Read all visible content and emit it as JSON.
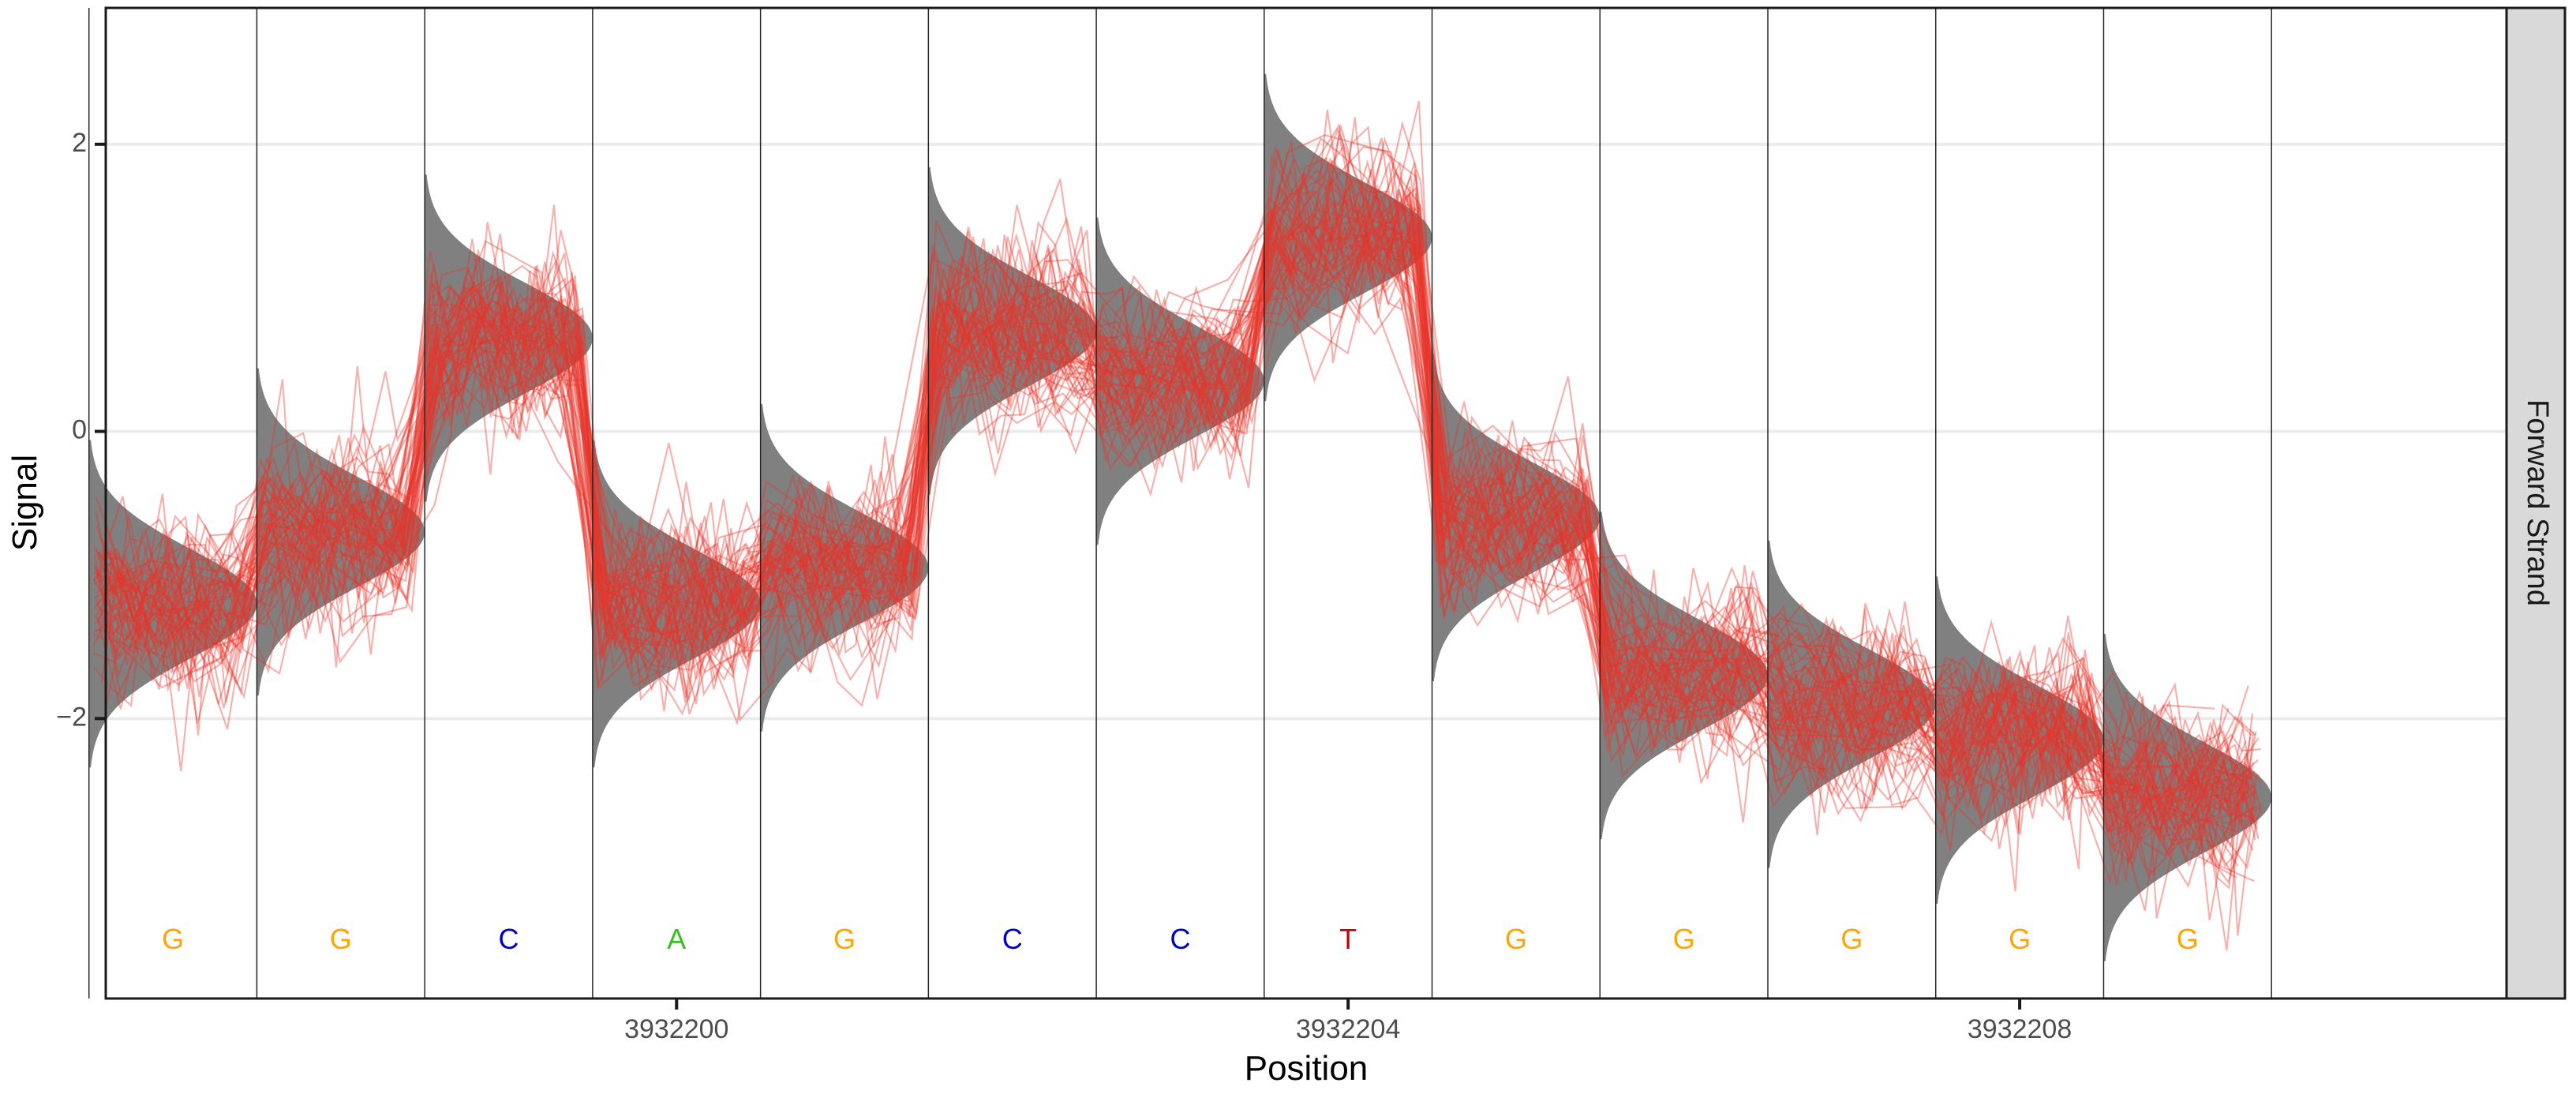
{
  "chart_data": {
    "type": "line",
    "title": "",
    "xlabel": "Position",
    "ylabel": "Signal",
    "facet_label": "Forward Strand",
    "x_ticks": [
      3932200,
      3932204,
      3932208
    ],
    "x_tick_labels": [
      "3932200",
      "3932204",
      "3932208"
    ],
    "y_ticks": [
      -2,
      0,
      2
    ],
    "y_tick_labels": [
      "−2",
      "0",
      "2"
    ],
    "xlim": [
      3932196.6,
      3932210.9
    ],
    "ylim": [
      -3.95,
      2.95
    ],
    "grid": "horizontal-major",
    "bases": [
      {
        "position": 3932197,
        "base": "G",
        "mean": -1.2
      },
      {
        "position": 3932198,
        "base": "G",
        "mean": -0.7
      },
      {
        "position": 3932199,
        "base": "C",
        "mean": 0.65
      },
      {
        "position": 3932200,
        "base": "A",
        "mean": -1.2
      },
      {
        "position": 3932201,
        "base": "G",
        "mean": -0.95
      },
      {
        "position": 3932202,
        "base": "C",
        "mean": 0.7
      },
      {
        "position": 3932203,
        "base": "C",
        "mean": 0.35
      },
      {
        "position": 3932204,
        "base": "T",
        "mean": 1.35
      },
      {
        "position": 3932205,
        "base": "G",
        "mean": -0.6
      },
      {
        "position": 3932206,
        "base": "G",
        "mean": -1.7
      },
      {
        "position": 3932207,
        "base": "G",
        "mean": -1.9
      },
      {
        "position": 3932208,
        "base": "G",
        "mean": -2.15
      },
      {
        "position": 3932209,
        "base": "G",
        "mean": -2.55
      }
    ],
    "base_colors": {
      "A": "#34c01c",
      "C": "#0000cc",
      "G": "#ffa500",
      "T": "#cc0000"
    },
    "model_fill_color": "#808080",
    "signal_line_color": "#e8352a"
  }
}
